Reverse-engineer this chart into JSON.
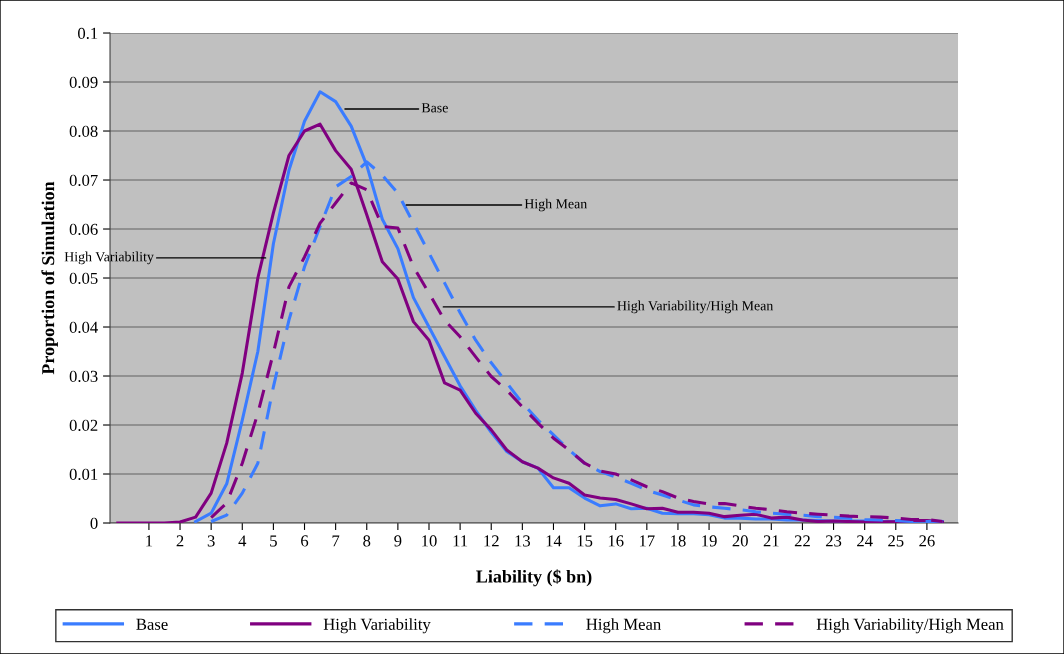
{
  "chart_data": {
    "type": "line",
    "xlabel": "Liability ($ bn)",
    "ylabel": "Proportion of Simulation",
    "x": [
      0,
      0.5,
      1,
      1.5,
      2,
      2.5,
      3,
      3.5,
      4,
      4.5,
      5,
      5.5,
      6,
      6.5,
      7,
      7.5,
      8,
      8.5,
      9,
      9.5,
      10,
      10.5,
      11,
      11.5,
      12,
      12.5,
      13,
      13.5,
      14,
      14.5,
      15,
      15.5,
      16,
      16.5,
      17,
      17.5,
      18,
      18.5,
      19,
      19.5,
      20,
      20.5,
      21,
      21.5,
      22,
      22.5,
      23,
      23.5,
      24,
      24.5,
      25,
      25.5,
      26,
      26.5
    ],
    "series": [
      {
        "name": "Base",
        "color": "#3a7cff",
        "line_style": "solid",
        "values": [
          null,
          null,
          null,
          null,
          null,
          0.0003,
          0.002,
          0.008,
          0.021,
          0.035,
          0.057,
          0.072,
          0.082,
          0.088,
          0.086,
          0.081,
          0.073,
          0.062,
          0.056,
          0.046,
          0.04,
          0.034,
          0.028,
          0.023,
          0.0185,
          0.0146,
          0.0125,
          0.0112,
          0.0072,
          0.0072,
          0.0051,
          0.0035,
          0.0039,
          0.0029,
          0.003,
          0.002,
          0.0019,
          0.0019,
          0.0017,
          0.001,
          0.001,
          0.0008,
          0.0008,
          0.0006,
          0.0006,
          0.0005,
          0.0004,
          0.0004,
          0.0004,
          0.0003,
          0.0003,
          0.0003,
          0.0004,
          0.0003
        ]
      },
      {
        "name": "High Variability",
        "color": "#800080",
        "line_style": "solid",
        "values": [
          0,
          0,
          0,
          0,
          0.0002,
          0.0012,
          0.0061,
          0.0163,
          0.0306,
          0.05,
          0.0633,
          0.075,
          0.08,
          0.0814,
          0.076,
          0.0722,
          0.0629,
          0.0533,
          0.0498,
          0.0411,
          0.0373,
          0.0286,
          0.0271,
          0.0224,
          0.019,
          0.0149,
          0.0125,
          0.0112,
          0.0092,
          0.0081,
          0.0057,
          0.0051,
          0.0048,
          0.0039,
          0.0029,
          0.003,
          0.0022,
          0.0022,
          0.002,
          0.0013,
          0.0016,
          0.0018,
          0.001,
          0.0012,
          0.0006,
          0.0003,
          0.0004,
          0.0003,
          0.0002,
          0.0002,
          0.0003,
          0.0005,
          0.0005,
          0.0002
        ]
      },
      {
        "name": "High Mean",
        "color": "#3a7cff",
        "line_style": "dashed",
        "values": [
          null,
          null,
          null,
          null,
          null,
          null,
          0.0003,
          0.0016,
          0.0061,
          0.0122,
          0.0278,
          0.0414,
          0.0523,
          0.0605,
          0.0686,
          0.0707,
          0.0737,
          0.071,
          0.0673,
          0.0612,
          0.0551,
          0.049,
          0.0429,
          0.0373,
          0.0327,
          0.0286,
          0.0245,
          0.021,
          0.018,
          0.0149,
          0.0122,
          0.0105,
          0.0094,
          0.0081,
          0.0067,
          0.0057,
          0.0047,
          0.0037,
          0.0033,
          0.003,
          0.0027,
          0.0023,
          0.002,
          0.0018,
          0.0016,
          0.0013,
          0.0012,
          0.001,
          0.0007,
          0.0006,
          0.0005,
          0.0004,
          0.0003,
          0.0003
        ]
      },
      {
        "name": "High Variability/High Mean",
        "color": "#800080",
        "line_style": "dashed",
        "values": [
          null,
          null,
          null,
          null,
          null,
          null,
          0.0011,
          0.0041,
          0.0122,
          0.0224,
          0.0347,
          0.0482,
          0.0543,
          0.0612,
          0.0653,
          0.0694,
          0.068,
          0.0605,
          0.0602,
          0.0523,
          0.0469,
          0.0414,
          0.038,
          0.0339,
          0.0299,
          0.0271,
          0.0237,
          0.0204,
          0.0173,
          0.0149,
          0.0122,
          0.0106,
          0.01,
          0.0088,
          0.0074,
          0.0064,
          0.0051,
          0.0044,
          0.0039,
          0.004,
          0.0035,
          0.003,
          0.0027,
          0.0023,
          0.002,
          0.0018,
          0.0016,
          0.0014,
          0.0013,
          0.0012,
          0.001,
          0.0007,
          0.0007,
          0.0003
        ]
      }
    ],
    "annotations": [
      {
        "text": "Base",
        "x": 7.3,
        "y": 0.0845
      },
      {
        "text": "High Mean",
        "x": 9.27,
        "y": 0.0649
      },
      {
        "text": "High Variability",
        "x": 4.75,
        "y": 0.0541
      },
      {
        "text": "High Variability/High Mean",
        "x": 10.46,
        "y": 0.0441
      }
    ],
    "xlim": [
      -0.25,
      27
    ],
    "xticks": [
      1,
      2,
      3,
      4,
      5,
      6,
      7,
      8,
      9,
      10,
      11,
      12,
      13,
      14,
      15,
      16,
      17,
      18,
      19,
      20,
      21,
      22,
      23,
      24,
      25,
      26
    ],
    "ylim": [
      0,
      0.1
    ],
    "yticks": [
      0,
      0.01,
      0.02,
      0.03,
      0.04,
      0.05,
      0.06,
      0.07,
      0.08,
      0.09,
      0.1
    ],
    "grid": "y",
    "legend": "bottom",
    "marker": "none"
  }
}
